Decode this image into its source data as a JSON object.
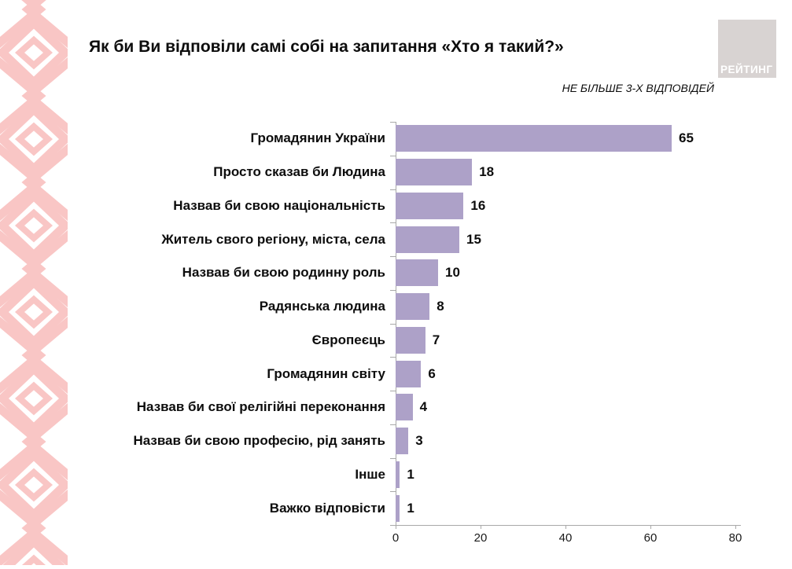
{
  "header": {
    "title": "Як би Ви відповіли самі собі на запитання «Хто я такий?»",
    "subtitle": "НЕ БІЛЬШЕ 3-Х ВІДПОВІДЕЙ",
    "logo_text": "РЕЙТИНГ"
  },
  "decor": {
    "pattern_name": "embroidery-diamond-pattern",
    "pattern_color": "#f9c6c5"
  },
  "colors": {
    "bar": "#ada1c8",
    "axis": "#a9a9a9",
    "logo_bg": "#d8d3d2",
    "text": "#0d0d0d"
  },
  "chart_data": {
    "type": "bar",
    "orientation": "horizontal",
    "title": "Як би Ви відповіли самі собі на запитання «Хто я такий?»",
    "subtitle": "НЕ БІЛЬШЕ 3-Х ВІДПОВІДЕЙ",
    "categories": [
      "Громадянин України",
      "Просто сказав би Людина",
      "Назвав би свою національність",
      "Житель свого регіону, міста, села",
      "Назвав би свою родинну роль",
      "Радянська людина",
      "Європеєць",
      "Громадянин світу",
      "Назвав би свої релігійні переконання",
      "Назвав би свою професію, рід занять",
      "Інше",
      "Важко відповісти"
    ],
    "values": [
      65,
      18,
      16,
      15,
      10,
      8,
      7,
      6,
      4,
      3,
      1,
      1
    ],
    "xlim": [
      0,
      80
    ],
    "x_ticks": [
      0,
      20,
      40,
      60,
      80
    ],
    "value_labels": true,
    "grid": false,
    "legend": false,
    "bar_color": "#ada1c8"
  }
}
